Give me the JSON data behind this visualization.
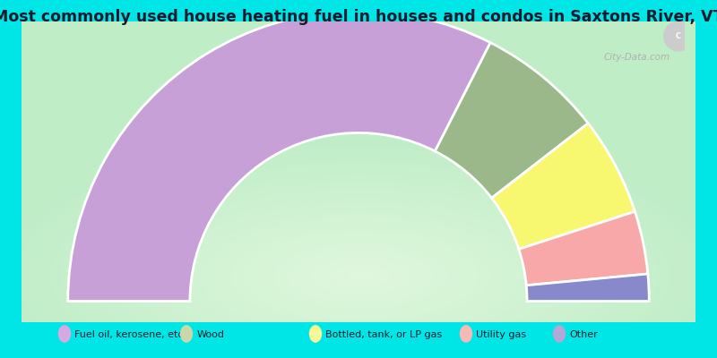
{
  "title": "Most commonly used house heating fuel in houses and condos in Saxtons River, VT",
  "title_fontsize": 12.5,
  "title_color": "#1a1a2e",
  "background_color": "#00E5E5",
  "segments": [
    {
      "label": "Fuel oil, kerosene, etc.",
      "value": 65,
      "color": "#c8a0d8"
    },
    {
      "label": "Wood",
      "value": 14,
      "color": "#9ab88a"
    },
    {
      "label": "Bottled, tank, or LP gas",
      "value": 11,
      "color": "#f8f870"
    },
    {
      "label": "Utility gas",
      "value": 7,
      "color": "#f8a8a8"
    },
    {
      "label": "Other",
      "value": 3,
      "color": "#8888cc"
    }
  ],
  "legend_items": [
    {
      "label": "Fuel oil, kerosene, etc.",
      "color": "#d8a8e0"
    },
    {
      "label": "Wood",
      "color": "#c8d8a8"
    },
    {
      "label": "Bottled, tank, or LP gas",
      "color": "#f8f898"
    },
    {
      "label": "Utility gas",
      "color": "#f8b8b8"
    },
    {
      "label": "Other",
      "color": "#b0a8d8"
    }
  ],
  "r_outer": 1.0,
  "r_inner": 0.58,
  "watermark": "City-Data.com"
}
